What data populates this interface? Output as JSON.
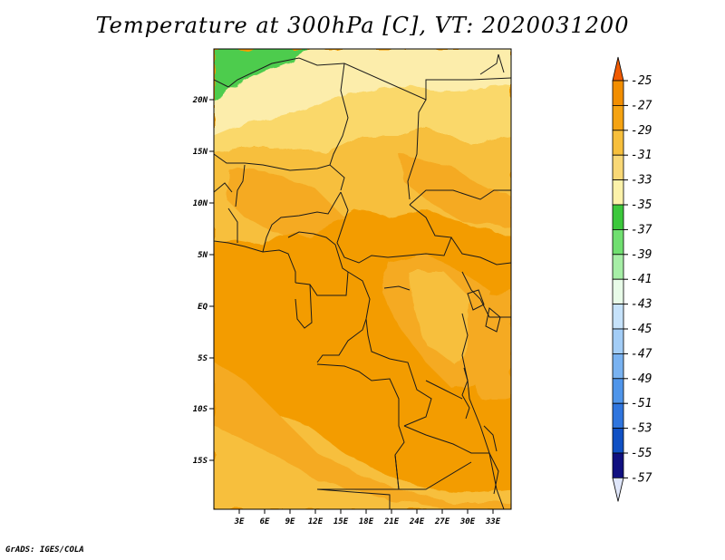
{
  "title": "Temperature at 300hPa [C], VT: 2020031200",
  "footer": "GrADS: IGES/COLA",
  "map": {
    "lat_labels": [
      "20N",
      "15N",
      "10N",
      "5N",
      "EQ",
      "5S",
      "10S",
      "15S"
    ],
    "lon_labels": [
      "3E",
      "6E",
      "9E",
      "12E",
      "15E",
      "18E",
      "21E",
      "24E",
      "27E",
      "30E",
      "33E"
    ]
  },
  "colorbar": {
    "labels": [
      "-25",
      "-27",
      "-29",
      "-31",
      "-33",
      "-35",
      "-37",
      "-39",
      "-41",
      "-43",
      "-45",
      "-47",
      "-49",
      "-51",
      "-53",
      "-55",
      "-57"
    ],
    "colors": [
      "#f05a00",
      "#f28e00",
      "#f5a312",
      "#f7bf3c",
      "#f9d876",
      "#fcf2aa",
      "#3cc83c",
      "#70df70",
      "#a6eea6",
      "#e8fbe8",
      "#c6e2fa",
      "#a3cdf6",
      "#79b2f1",
      "#4f95ea",
      "#2f75de",
      "#1050c4",
      "#101080",
      "#dfe6fa"
    ]
  },
  "colors": {
    "sea": "#f6a20a",
    "land_warm": "#f39c00",
    "land_mid": "#f5aa20",
    "land_cool": "#f8c23c",
    "land_cooler": "#fad86a",
    "land_pale": "#fcedab",
    "green": "#4dcc4d",
    "border": "#1a1a1a"
  }
}
